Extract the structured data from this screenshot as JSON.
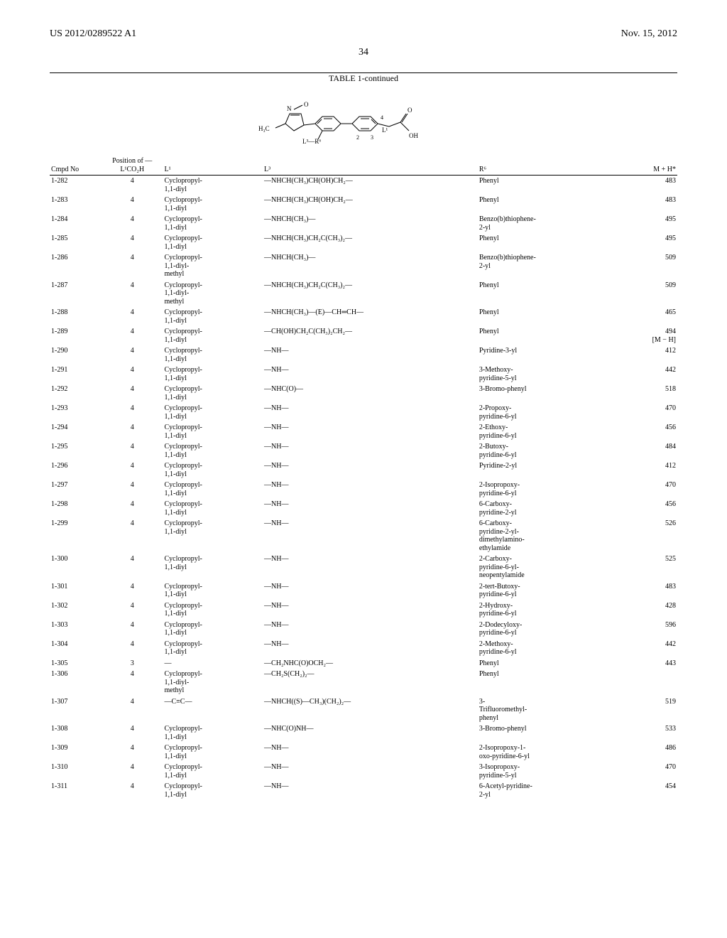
{
  "header": {
    "left": "US 2012/0289522 A1",
    "right": "Nov. 15, 2012",
    "page_number": "34"
  },
  "table": {
    "title": "TABLE 1-continued",
    "columns": {
      "cmpd": "Cmpd\nNo",
      "pos": "Position of\n—L¹CO₂H",
      "l1": "L¹",
      "l3": "L³",
      "r6": "R⁶",
      "mh": "M + H*"
    },
    "rows": [
      {
        "cmpd": "1-282",
        "pos": "4",
        "l1": "Cyclopropyl-\n1,1-diyl",
        "l3": "—NHCH(CH₃)CH(OH)CH₂—",
        "r6": "Phenyl",
        "mh": "483"
      },
      {
        "cmpd": "1-283",
        "pos": "4",
        "l1": "Cyclopropyl-\n1,1-diyl",
        "l3": "—NHCH(CH₃)CH(OH)CH₂—",
        "r6": "Phenyl",
        "mh": "483"
      },
      {
        "cmpd": "1-284",
        "pos": "4",
        "l1": "Cyclopropyl-\n1,1-diyl",
        "l3": "—NHCH(CH₃)—",
        "r6": "Benzo(b)thiophene-\n2-yl",
        "mh": "495"
      },
      {
        "cmpd": "1-285",
        "pos": "4",
        "l1": "Cyclopropyl-\n1,1-diyl",
        "l3": "—NHCH(CH₃)CH₂C(CH₃)₂—",
        "r6": "Phenyl",
        "mh": "495"
      },
      {
        "cmpd": "1-286",
        "pos": "4",
        "l1": "Cyclopropyl-\n1,1-diyl-\nmethyl",
        "l3": "—NHCH(CH₃)—",
        "r6": "Benzo(b)thiophene-\n2-yl",
        "mh": "509"
      },
      {
        "cmpd": "1-287",
        "pos": "4",
        "l1": "Cyclopropyl-\n1,1-diyl-\nmethyl",
        "l3": "—NHCH(CH₃)CH₂C(CH₃)₂—",
        "r6": "Phenyl",
        "mh": "509"
      },
      {
        "cmpd": "1-288",
        "pos": "4",
        "l1": "Cyclopropyl-\n1,1-diyl",
        "l3": "—NHCH(CH₃)—(E)—CH═CH—",
        "r6": "Phenyl",
        "mh": "465"
      },
      {
        "cmpd": "1-289",
        "pos": "4",
        "l1": "Cyclopropyl-\n1,1-diyl",
        "l3": "—CH(OH)CH₂C(CH₃)₂CH₂—",
        "r6": "Phenyl",
        "mh": "494\n[M − H]"
      },
      {
        "cmpd": "1-290",
        "pos": "4",
        "l1": "Cyclopropyl-\n1,1-diyl",
        "l3": "—NH—",
        "r6": "Pyridine-3-yl",
        "mh": "412"
      },
      {
        "cmpd": "1-291",
        "pos": "4",
        "l1": "Cyclopropyl-\n1,1-diyl",
        "l3": "—NH—",
        "r6": "3-Methoxy-\npyridine-5-yl",
        "mh": "442"
      },
      {
        "cmpd": "1-292",
        "pos": "4",
        "l1": "Cyclopropyl-\n1,1-diyl",
        "l3": "—NHC(O)—",
        "r6": "3-Bromo-phenyl",
        "mh": "518"
      },
      {
        "cmpd": "1-293",
        "pos": "4",
        "l1": "Cyclopropyl-\n1,1-diyl",
        "l3": "—NH—",
        "r6": "2-Propoxy-\npyridine-6-yl",
        "mh": "470"
      },
      {
        "cmpd": "1-294",
        "pos": "4",
        "l1": "Cyclopropyl-\n1,1-diyl",
        "l3": "—NH—",
        "r6": "2-Ethoxy-\npyridine-6-yl",
        "mh": "456"
      },
      {
        "cmpd": "1-295",
        "pos": "4",
        "l1": "Cyclopropyl-\n1,1-diyl",
        "l3": "—NH—",
        "r6": "2-Butoxy-\npyridine-6-yl",
        "mh": "484"
      },
      {
        "cmpd": "1-296",
        "pos": "4",
        "l1": "Cyclopropyl-\n1,1-diyl",
        "l3": "—NH—",
        "r6": "Pyridine-2-yl",
        "mh": "412"
      },
      {
        "cmpd": "1-297",
        "pos": "4",
        "l1": "Cyclopropyl-\n1,1-diyl",
        "l3": "—NH—",
        "r6": "2-Isopropoxy-\npyridine-6-yl",
        "mh": "470"
      },
      {
        "cmpd": "1-298",
        "pos": "4",
        "l1": "Cyclopropyl-\n1,1-diyl",
        "l3": "—NH—",
        "r6": "6-Carboxy-\npyridine-2-yl",
        "mh": "456"
      },
      {
        "cmpd": "1-299",
        "pos": "4",
        "l1": "Cyclopropyl-\n1,1-diyl",
        "l3": "—NH—",
        "r6": "6-Carboxy-\npyridine-2-yl-\ndimethylamino-\nethylamide",
        "mh": "526"
      },
      {
        "cmpd": "1-300",
        "pos": "4",
        "l1": "Cyclopropyl-\n1,1-diyl",
        "l3": "—NH—",
        "r6": "2-Carboxy-\npyridine-6-yl-\nneopentylamide",
        "mh": "525"
      },
      {
        "cmpd": "1-301",
        "pos": "4",
        "l1": "Cyclopropyl-\n1,1-diyl",
        "l3": "—NH—",
        "r6": "2-tert-Butoxy-\npyridine-6-yl",
        "mh": "483"
      },
      {
        "cmpd": "1-302",
        "pos": "4",
        "l1": "Cyclopropyl-\n1,1-diyl",
        "l3": "—NH—",
        "r6": "2-Hydroxy-\npyridine-6-yl",
        "mh": "428"
      },
      {
        "cmpd": "1-303",
        "pos": "4",
        "l1": "Cyclopropyl-\n1,1-diyl",
        "l3": "—NH—",
        "r6": "2-Dodecyloxy-\npyridine-6-yl",
        "mh": "596"
      },
      {
        "cmpd": "1-304",
        "pos": "4",
        "l1": "Cyclopropyl-\n1,1-diyl",
        "l3": "—NH—",
        "r6": "2-Methoxy-\npyridine-6-yl",
        "mh": "442"
      },
      {
        "cmpd": "1-305",
        "pos": "3",
        "l1": "—",
        "l3": "—CH₂NHC(O)OCH₂—",
        "r6": "Phenyl",
        "mh": "443"
      },
      {
        "cmpd": "1-306",
        "pos": "4",
        "l1": "Cyclopropyl-\n1,1-diyl-\nmethyl",
        "l3": "—CH₂S(CH₂)₂—",
        "r6": "Phenyl",
        "mh": ""
      },
      {
        "cmpd": "1-307",
        "pos": "4",
        "l1": "—C≡C—",
        "l3": "—NHCH((S)—CH₃)(CH₂)₂—",
        "r6": "3-\nTrifluoromethyl-\nphenyl",
        "mh": "519"
      },
      {
        "cmpd": "1-308",
        "pos": "4",
        "l1": "Cyclopropyl-\n1,1-diyl",
        "l3": "—NHC(O)NH—",
        "r6": "3-Bromo-phenyl",
        "mh": "533"
      },
      {
        "cmpd": "1-309",
        "pos": "4",
        "l1": "Cyclopropyl-\n1,1-diyl",
        "l3": "—NH—",
        "r6": "2-Isopropoxy-1-\noxo-pyridine-6-yl",
        "mh": "486"
      },
      {
        "cmpd": "1-310",
        "pos": "4",
        "l1": "Cyclopropyl-\n1,1-diyl",
        "l3": "—NH—",
        "r6": "3-Isopropoxy-\npyridine-5-yl",
        "mh": "470"
      },
      {
        "cmpd": "1-311",
        "pos": "4",
        "l1": "Cyclopropyl-\n1,1-diyl",
        "l3": "—NH—",
        "r6": "6-Acetyl-pyridine-\n2-yl",
        "mh": "454"
      }
    ]
  },
  "structure_labels": {
    "h3c": "H₃C",
    "n": "N",
    "o": "O",
    "oh": "OH",
    "l1": "L¹",
    "l3r6": "L³—R⁶",
    "n2": "2",
    "n3": "3",
    "n4": "4"
  }
}
